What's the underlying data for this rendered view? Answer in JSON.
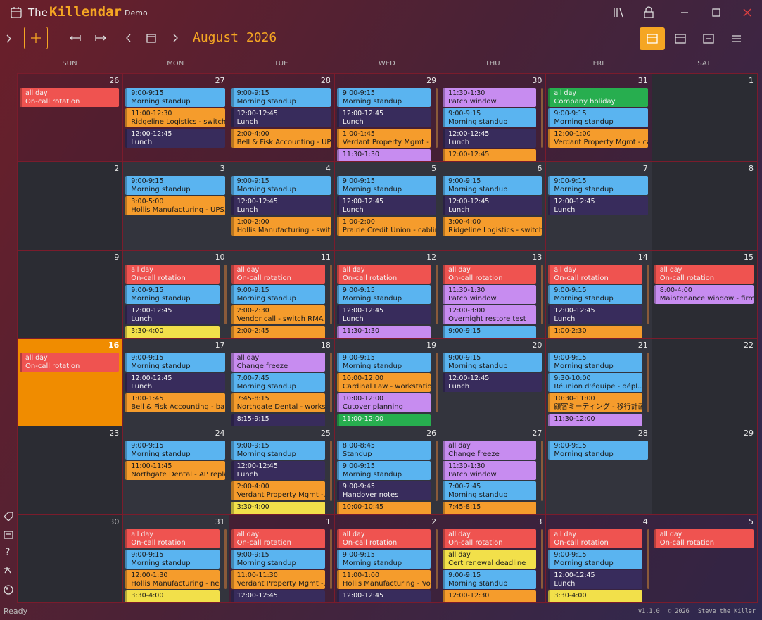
{
  "app": {
    "title_prefix": "The",
    "title": "Killendar",
    "edition": "Demo"
  },
  "toolbar": {
    "month": "August 2026"
  },
  "weekdays": [
    "SUN",
    "MON",
    "TUE",
    "WED",
    "THU",
    "FRI",
    "SAT"
  ],
  "weeks": [
    {
      "days": [
        {
          "day": 26,
          "in_month": false,
          "events": [
            {
              "time": "all day",
              "title": "On-call rotation",
              "color": "#ef5350"
            }
          ]
        },
        {
          "day": 27,
          "in_month": false,
          "events": [
            {
              "time": "9:00-9:15",
              "title": "Morning standup",
              "color": "#5ab4f0"
            },
            {
              "time": "11:00-12:30",
              "title": "Ridgeline Logistics - switch s...",
              "color": "#f59c2c"
            },
            {
              "time": "12:00-12:45",
              "title": "Lunch",
              "color": "#382c5c"
            }
          ]
        },
        {
          "day": 28,
          "in_month": false,
          "events": [
            {
              "time": "9:00-9:15",
              "title": "Morning standup",
              "color": "#5ab4f0"
            },
            {
              "time": "12:00-12:45",
              "title": "Lunch",
              "color": "#382c5c"
            },
            {
              "time": "2:00-4:00",
              "title": "Bell & Fisk Accounting - UP...",
              "color": "#f59c2c"
            }
          ]
        },
        {
          "day": 29,
          "in_month": false,
          "events": [
            {
              "time": "9:00-9:15",
              "title": "Morning standup",
              "color": "#5ab4f0"
            },
            {
              "time": "12:00-12:45",
              "title": "Lunch",
              "color": "#382c5c"
            },
            {
              "time": "1:00-1:45",
              "title": "Verdant Property Mgmt - ...",
              "color": "#f59c2c"
            },
            {
              "time": "11:30-1:30",
              "color": "#c78cf0"
            }
          ]
        },
        {
          "day": 30,
          "in_month": false,
          "events": [
            {
              "time": "11:30-1:30",
              "title": "Patch window",
              "color": "#c78cf0"
            },
            {
              "time": "9:00-9:15",
              "title": "Morning standup",
              "color": "#5ab4f0"
            },
            {
              "time": "12:00-12:45",
              "title": "Lunch",
              "color": "#382c5c"
            },
            {
              "time": "12:00-12:45",
              "color": "#f59c2c"
            }
          ]
        },
        {
          "day": 31,
          "in_month": false,
          "events": [
            {
              "time": "all day",
              "title": "Company holiday",
              "color": "#27ae4f"
            },
            {
              "time": "9:00-9:15",
              "title": "Morning standup",
              "color": "#5ab4f0"
            },
            {
              "time": "12:00-1:00",
              "title": "Verdant Property Mgmt - ca...",
              "color": "#f59c2c"
            }
          ]
        },
        {
          "day": 1,
          "in_month": true,
          "events": []
        }
      ]
    },
    {
      "days": [
        {
          "day": 2,
          "in_month": true,
          "events": []
        },
        {
          "day": 3,
          "in_month": true,
          "events": [
            {
              "time": "9:00-9:15",
              "title": "Morning standup",
              "color": "#5ab4f0"
            },
            {
              "time": "3:00-5:00",
              "title": "Hollis Manufacturing - UPS...",
              "color": "#f59c2c"
            }
          ]
        },
        {
          "day": 4,
          "in_month": true,
          "events": [
            {
              "time": "9:00-9:15",
              "title": "Morning standup",
              "color": "#5ab4f0"
            },
            {
              "time": "12:00-12:45",
              "title": "Lunch",
              "color": "#382c5c"
            },
            {
              "time": "1:00-2:00",
              "title": "Hollis Manufacturing - switc...",
              "color": "#f59c2c"
            }
          ]
        },
        {
          "day": 5,
          "in_month": true,
          "events": [
            {
              "time": "9:00-9:15",
              "title": "Morning standup",
              "color": "#5ab4f0"
            },
            {
              "time": "12:00-12:45",
              "title": "Lunch",
              "color": "#382c5c"
            },
            {
              "time": "1:00-2:00",
              "title": "Prairie Credit Union - cablin...",
              "color": "#f59c2c"
            }
          ]
        },
        {
          "day": 6,
          "in_month": true,
          "events": [
            {
              "time": "9:00-9:15",
              "title": "Morning standup",
              "color": "#5ab4f0"
            },
            {
              "time": "12:00-12:45",
              "title": "Lunch",
              "color": "#382c5c"
            },
            {
              "time": "3:00-4:00",
              "title": "Ridgeline Logistics - switch s...",
              "color": "#f59c2c"
            }
          ]
        },
        {
          "day": 7,
          "in_month": true,
          "events": [
            {
              "time": "9:00-9:15",
              "title": "Morning standup",
              "color": "#5ab4f0"
            },
            {
              "time": "12:00-12:45",
              "title": "Lunch",
              "color": "#382c5c"
            }
          ]
        },
        {
          "day": 8,
          "in_month": true,
          "events": []
        }
      ]
    },
    {
      "days": [
        {
          "day": 9,
          "in_month": true,
          "events": []
        },
        {
          "day": 10,
          "in_month": true,
          "events": [
            {
              "time": "all day",
              "title": "On-call rotation",
              "color": "#ef5350"
            },
            {
              "time": "9:00-9:15",
              "title": "Morning standup",
              "color": "#5ab4f0"
            },
            {
              "time": "12:00-12:45",
              "title": "Lunch",
              "color": "#382c5c"
            },
            {
              "time": "3:30-4:00",
              "color": "#f2e04a"
            }
          ]
        },
        {
          "day": 11,
          "in_month": true,
          "events": [
            {
              "time": "all day",
              "title": "On-call rotation",
              "color": "#ef5350"
            },
            {
              "time": "9:00-9:15",
              "title": "Morning standup",
              "color": "#5ab4f0"
            },
            {
              "time": "2:00-2:30",
              "title": "Vendor call - switch RMA",
              "color": "#f59c2c"
            },
            {
              "time": "2:00-2:45",
              "color": "#f59c2c"
            }
          ]
        },
        {
          "day": 12,
          "in_month": true,
          "events": [
            {
              "time": "all day",
              "title": "On-call rotation",
              "color": "#ef5350"
            },
            {
              "time": "9:00-9:15",
              "title": "Morning standup",
              "color": "#5ab4f0"
            },
            {
              "time": "12:00-12:45",
              "title": "Lunch",
              "color": "#382c5c"
            },
            {
              "time": "11:30-1:30",
              "color": "#c78cf0"
            }
          ]
        },
        {
          "day": 13,
          "in_month": true,
          "events": [
            {
              "time": "all day",
              "title": "On-call rotation",
              "color": "#ef5350"
            },
            {
              "time": "11:30-1:30",
              "title": "Patch window",
              "color": "#c78cf0"
            },
            {
              "time": "12:00-3:00",
              "title": "Overnight restore test",
              "color": "#c78cf0"
            },
            {
              "time": "9:00-9:15",
              "color": "#5ab4f0"
            }
          ]
        },
        {
          "day": 14,
          "in_month": true,
          "events": [
            {
              "time": "all day",
              "title": "On-call rotation",
              "color": "#ef5350"
            },
            {
              "time": "9:00-9:15",
              "title": "Morning standup",
              "color": "#5ab4f0"
            },
            {
              "time": "12:00-12:45",
              "title": "Lunch",
              "color": "#382c5c"
            },
            {
              "time": "1:00-2:30",
              "color": "#f59c2c"
            }
          ]
        },
        {
          "day": 15,
          "in_month": true,
          "events": [
            {
              "time": "all day",
              "title": "On-call rotation",
              "color": "#ef5350"
            },
            {
              "time": "8:00-4:00",
              "title": "Maintenance window - firm...",
              "color": "#c78cf0"
            }
          ]
        }
      ]
    },
    {
      "days": [
        {
          "day": 16,
          "in_month": true,
          "today": true,
          "events": [
            {
              "time": "all day",
              "title": "On-call rotation",
              "color": "#ef5350"
            }
          ]
        },
        {
          "day": 17,
          "in_month": true,
          "events": [
            {
              "time": "9:00-9:15",
              "title": "Morning standup",
              "color": "#5ab4f0"
            },
            {
              "time": "12:00-12:45",
              "title": "Lunch",
              "color": "#382c5c"
            },
            {
              "time": "1:00-1:45",
              "title": "Bell & Fisk Accounting - ba...",
              "color": "#f59c2c"
            }
          ]
        },
        {
          "day": 18,
          "in_month": true,
          "events": [
            {
              "time": "all day",
              "title": "Change freeze",
              "color": "#c78cf0"
            },
            {
              "time": "7:00-7:45",
              "title": "Morning standup",
              "color": "#5ab4f0"
            },
            {
              "time": "7:45-8:15",
              "title": "Northgate Dental - works...",
              "color": "#f59c2c"
            },
            {
              "time": "8:15-9:15",
              "color": "#382c5c"
            }
          ]
        },
        {
          "day": 19,
          "in_month": true,
          "events": [
            {
              "time": "9:00-9:15",
              "title": "Morning standup",
              "color": "#5ab4f0"
            },
            {
              "time": "10:00-12:00",
              "title": "Cardinal Law - workstatio...",
              "color": "#f59c2c"
            },
            {
              "time": "10:00-12:00",
              "title": "Cutover planning",
              "color": "#c78cf0"
            },
            {
              "time": "11:00-12:00",
              "color": "#27ae4f"
            }
          ]
        },
        {
          "day": 20,
          "in_month": true,
          "events": [
            {
              "time": "9:00-9:15",
              "title": "Morning standup",
              "color": "#5ab4f0"
            },
            {
              "time": "12:00-12:45",
              "title": "Lunch",
              "color": "#382c5c"
            }
          ]
        },
        {
          "day": 21,
          "in_month": true,
          "events": [
            {
              "time": "9:00-9:15",
              "title": "Morning standup",
              "color": "#5ab4f0"
            },
            {
              "time": "9:30-10:00",
              "title": "Réunion d'équipe - dépl...",
              "color": "#5ab4f0"
            },
            {
              "time": "10:30-11:00",
              "title": "顧客ミーティング - 移行計画",
              "color": "#f59c2c"
            },
            {
              "time": "11:30-12:00",
              "color": "#c78cf0"
            }
          ]
        },
        {
          "day": 22,
          "in_month": true,
          "events": []
        }
      ]
    },
    {
      "days": [
        {
          "day": 23,
          "in_month": true,
          "events": []
        },
        {
          "day": 24,
          "in_month": true,
          "events": [
            {
              "time": "9:00-9:15",
              "title": "Morning standup",
              "color": "#5ab4f0"
            },
            {
              "time": "11:00-11:45",
              "title": "Northgate Dental - AP repla...",
              "color": "#f59c2c"
            }
          ]
        },
        {
          "day": 25,
          "in_month": true,
          "events": [
            {
              "time": "9:00-9:15",
              "title": "Morning standup",
              "color": "#5ab4f0"
            },
            {
              "time": "12:00-12:45",
              "title": "Lunch",
              "color": "#382c5c"
            },
            {
              "time": "2:00-4:00",
              "title": "Verdant Property Mgmt -...",
              "color": "#f59c2c"
            },
            {
              "time": "3:30-4:00",
              "color": "#f2e04a"
            }
          ]
        },
        {
          "day": 26,
          "in_month": true,
          "events": [
            {
              "time": "8:00-8:45",
              "title": "Standup",
              "color": "#5ab4f0"
            },
            {
              "time": "9:00-9:15",
              "title": "Morning standup",
              "color": "#5ab4f0"
            },
            {
              "time": "9:00-9:45",
              "title": "Handover notes",
              "color": "#382c5c"
            },
            {
              "time": "10:00-10:45",
              "color": "#f59c2c"
            }
          ]
        },
        {
          "day": 27,
          "in_month": true,
          "events": [
            {
              "time": "all day",
              "title": "Change freeze",
              "color": "#c78cf0"
            },
            {
              "time": "11:30-1:30",
              "title": "Patch window",
              "color": "#c78cf0"
            },
            {
              "time": "7:00-7:45",
              "title": "Morning standup",
              "color": "#5ab4f0"
            },
            {
              "time": "7:45-8:15",
              "color": "#f59c2c"
            }
          ]
        },
        {
          "day": 28,
          "in_month": true,
          "events": [
            {
              "time": "9:00-9:15",
              "title": "Morning standup",
              "color": "#5ab4f0"
            }
          ]
        },
        {
          "day": 29,
          "in_month": true,
          "events": []
        }
      ]
    },
    {
      "days": [
        {
          "day": 30,
          "in_month": true,
          "events": []
        },
        {
          "day": 31,
          "in_month": true,
          "events": [
            {
              "time": "all day",
              "title": "On-call rotation",
              "color": "#ef5350"
            },
            {
              "time": "9:00-9:15",
              "title": "Morning standup",
              "color": "#5ab4f0"
            },
            {
              "time": "12:00-1:30",
              "title": "Hollis Manufacturing - ne...",
              "color": "#f59c2c"
            },
            {
              "time": "3:30-4:00",
              "color": "#f2e04a"
            }
          ]
        },
        {
          "day": 1,
          "in_month": false,
          "events": [
            {
              "time": "all day",
              "title": "On-call rotation",
              "color": "#ef5350"
            },
            {
              "time": "9:00-9:15",
              "title": "Morning standup",
              "color": "#5ab4f0"
            },
            {
              "time": "11:00-11:30",
              "title": "Verdant Property Mgmt -...",
              "color": "#f59c2c"
            },
            {
              "time": "12:00-12:45",
              "color": "#382c5c"
            }
          ]
        },
        {
          "day": 2,
          "in_month": false,
          "events": [
            {
              "time": "all day",
              "title": "On-call rotation",
              "color": "#ef5350"
            },
            {
              "time": "9:00-9:15",
              "title": "Morning standup",
              "color": "#5ab4f0"
            },
            {
              "time": "11:00-1:00",
              "title": "Hollis Manufacturing - Vo...",
              "color": "#f59c2c"
            },
            {
              "time": "12:00-12:45",
              "color": "#382c5c"
            }
          ]
        },
        {
          "day": 3,
          "in_month": false,
          "events": [
            {
              "time": "all day",
              "title": "On-call rotation",
              "color": "#ef5350"
            },
            {
              "time": "all day",
              "title": "Cert renewal deadline",
              "color": "#f2e04a"
            },
            {
              "time": "9:00-9:15",
              "title": "Morning standup",
              "color": "#5ab4f0"
            },
            {
              "time": "12:00-12:30",
              "color": "#f59c2c"
            }
          ]
        },
        {
          "day": 4,
          "in_month": false,
          "events": [
            {
              "time": "all day",
              "title": "On-call rotation",
              "color": "#ef5350"
            },
            {
              "time": "9:00-9:15",
              "title": "Morning standup",
              "color": "#5ab4f0"
            },
            {
              "time": "12:00-12:45",
              "title": "Lunch",
              "color": "#382c5c"
            },
            {
              "time": "3:30-4:00",
              "color": "#f2e04a"
            }
          ]
        },
        {
          "day": 5,
          "in_month": false,
          "events": [
            {
              "time": "all day",
              "title": "On-call rotation",
              "color": "#ef5350"
            }
          ]
        }
      ]
    }
  ],
  "status": {
    "left": "Ready",
    "version": "v1.1.0",
    "copyright": "© 2026",
    "author": "Steve the Killer"
  }
}
